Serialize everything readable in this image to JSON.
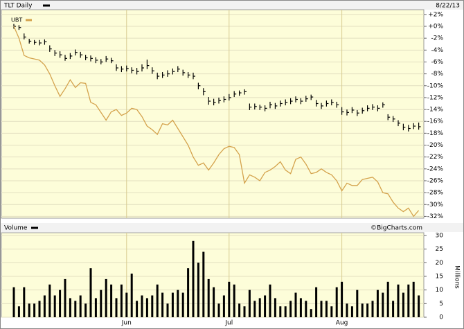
{
  "chart_data": [
    {
      "type": "ohlc",
      "date": "8/22/13",
      "categories": [
        null,
        null,
        null,
        null,
        null,
        null,
        null,
        null,
        null,
        null,
        null,
        null,
        null,
        null,
        null,
        null,
        null,
        null,
        null,
        null,
        null,
        null,
        "Jun",
        null,
        null,
        null,
        null,
        null,
        null,
        null,
        null,
        null,
        null,
        null,
        null,
        null,
        null,
        null,
        null,
        null,
        null,
        null,
        "Jul",
        null,
        null,
        null,
        null,
        null,
        null,
        null,
        null,
        null,
        null,
        null,
        null,
        null,
        null,
        null,
        null,
        null,
        null,
        null,
        null,
        null,
        "Aug",
        null,
        null,
        null,
        null,
        null,
        null,
        null,
        null,
        null,
        null,
        null,
        null,
        null,
        null,
        null
      ],
      "series": [
        {
          "name": "TLT Daily",
          "type": "ohlc",
          "color": "#000000",
          "values": [
            0,
            -0.2,
            -1.8,
            -2.5,
            -2.7,
            -2.8,
            -2.6,
            -3.8,
            -4.5,
            -4.8,
            -5.4,
            -5.0,
            -4.4,
            -4.8,
            -5.3,
            -5.4,
            -5.7,
            -6.0,
            -5.5,
            -5.8,
            -7.0,
            -7.2,
            -7.1,
            -7.4,
            -7.6,
            -7.0,
            -6.6,
            -7.5,
            -8.4,
            -8.2,
            -8.0,
            -7.6,
            -7.2,
            -7.8,
            -8.2,
            -8.4,
            -10.0,
            -11.0,
            -12.6,
            -12.8,
            -12.5,
            -12.3,
            -12.0,
            -11.4,
            -11.2,
            -11.0,
            -13.6,
            -13.5,
            -13.6,
            -13.8,
            -13.2,
            -13.4,
            -13.0,
            -12.8,
            -12.6,
            -12.3,
            -12.6,
            -12.2,
            -11.9,
            -13.0,
            -13.4,
            -13.0,
            -12.8,
            -13.2,
            -14.4,
            -14.5,
            -14.1,
            -14.6,
            -14.2,
            -13.8,
            -13.6,
            -13.8,
            -13.2,
            -15.3,
            -15.6,
            -16.3,
            -17.0,
            -17.2,
            -16.8,
            -16.9
          ],
          "high": [
            0.4,
            0.2,
            -1.2,
            -2.1,
            -2.3,
            -2.3,
            -2.2,
            -3.2,
            -4.0,
            -4.2,
            -4.8,
            -4.5,
            -3.9,
            -4.3,
            -4.8,
            -4.9,
            -5.2,
            -5.5,
            -5.0,
            -5.3,
            -6.4,
            -6.7,
            -6.6,
            -6.9,
            -7.0,
            -6.4,
            -5.6,
            -6.9,
            -7.8,
            -7.7,
            -7.4,
            -7.1,
            -6.7,
            -7.3,
            -7.7,
            -7.8,
            -9.5,
            -10.4,
            -11.9,
            -12.2,
            -12.0,
            -11.8,
            -11.4,
            -10.9,
            -10.8,
            -10.6,
            -13.0,
            -13.0,
            -13.2,
            -13.3,
            -12.7,
            -12.9,
            -12.5,
            -12.3,
            -12.1,
            -11.8,
            -12.1,
            -11.7,
            -11.5,
            -12.4,
            -12.9,
            -12.5,
            -12.3,
            -12.7,
            -13.6,
            -14.0,
            -13.6,
            -14.1,
            -13.7,
            -13.3,
            -13.1,
            -13.3,
            -12.8,
            -14.8,
            -15.1,
            -15.8,
            -16.4,
            -16.6,
            -16.3,
            -16.2
          ],
          "low": [
            -0.4,
            -0.6,
            -2.2,
            -2.9,
            -3.1,
            -3.2,
            -3.1,
            -4.3,
            -5.0,
            -5.3,
            -5.8,
            -5.5,
            -4.9,
            -5.3,
            -5.7,
            -5.9,
            -6.2,
            -6.4,
            -6.0,
            -6.2,
            -7.5,
            -7.7,
            -7.6,
            -7.9,
            -8.1,
            -7.6,
            -7.2,
            -8.0,
            -8.9,
            -8.7,
            -8.5,
            -8.1,
            -7.7,
            -8.3,
            -8.7,
            -8.9,
            -10.6,
            -11.6,
            -13.2,
            -13.3,
            -13.0,
            -12.8,
            -12.5,
            -11.9,
            -11.7,
            -11.5,
            -14.1,
            -14.0,
            -14.1,
            -14.3,
            -13.8,
            -13.9,
            -13.5,
            -13.3,
            -13.1,
            -12.8,
            -13.1,
            -12.7,
            -12.4,
            -13.5,
            -13.9,
            -13.5,
            -13.3,
            -13.7,
            -14.9,
            -15.0,
            -14.6,
            -15.1,
            -14.7,
            -14.3,
            -14.1,
            -14.3,
            -13.7,
            -15.8,
            -16.1,
            -16.8,
            -17.5,
            -17.7,
            -17.3,
            -17.4
          ]
        },
        {
          "name": "UBT",
          "type": "line",
          "color": "#d4a24c",
          "values": [
            0,
            -2.0,
            -4.9,
            -5.3,
            -5.5,
            -5.7,
            -6.5,
            -8.0,
            -10.0,
            -11.8,
            -10.5,
            -9.0,
            -10.3,
            -9.5,
            -9.6,
            -12.8,
            -13.2,
            -14.5,
            -15.8,
            -14.4,
            -14.0,
            -15.0,
            -14.6,
            -13.8,
            -14.0,
            -15.2,
            -16.8,
            -17.4,
            -18.2,
            -16.4,
            -16.6,
            -15.8,
            -17.2,
            -18.6,
            -20.0,
            -22.0,
            -23.4,
            -23.0,
            -24.2,
            -23.0,
            -21.6,
            -20.6,
            -20.2,
            -20.4,
            -21.6,
            -26.4,
            -25.0,
            -25.4,
            -26.0,
            -24.6,
            -24.2,
            -23.6,
            -22.8,
            -24.2,
            -24.8,
            -22.4,
            -22.0,
            -23.2,
            -24.8,
            -24.6,
            -24.0,
            -24.6,
            -25.0,
            -26.0,
            -27.7,
            -26.4,
            -26.8,
            -26.8,
            -25.8,
            -25.6,
            -25.4,
            -26.2,
            -28.0,
            -28.2,
            -29.6,
            -30.6,
            -31.2,
            -30.6,
            -32.0,
            -31.0
          ]
        }
      ],
      "ylim": [
        -32.3,
        2.8
      ],
      "yticks": [
        {
          "value": 2,
          "label": "+2%"
        },
        {
          "value": 0,
          "label": "+0%"
        },
        {
          "value": -2,
          "label": "-2%"
        },
        {
          "value": -4,
          "label": "-4%"
        },
        {
          "value": -6,
          "label": "-6%"
        },
        {
          "value": -8,
          "label": "-8%"
        },
        {
          "value": -10,
          "label": "-10%"
        },
        {
          "value": -12,
          "label": "-12%"
        },
        {
          "value": -14,
          "label": "-14%"
        },
        {
          "value": -16,
          "label": "-16%"
        },
        {
          "value": -18,
          "label": "-18%"
        },
        {
          "value": -20,
          "label": "-20%"
        },
        {
          "value": -22,
          "label": "-22%"
        },
        {
          "value": -24,
          "label": "-24%"
        },
        {
          "value": -26,
          "label": "-26%"
        },
        {
          "value": -28,
          "label": "-28%"
        },
        {
          "value": -30,
          "label": "-30%"
        },
        {
          "value": -32,
          "label": "-32%"
        }
      ],
      "grid": true
    },
    {
      "type": "bar",
      "title": "Volume",
      "credit": "©BigCharts.com",
      "y_label": "Millions",
      "color": "#000000",
      "values": [
        11,
        4,
        11,
        5,
        5,
        6,
        8,
        12,
        8,
        10,
        14,
        7,
        6,
        8,
        5,
        18,
        7,
        10,
        14,
        12,
        7,
        12,
        9,
        16,
        6,
        8,
        7,
        8,
        12,
        9,
        5,
        9,
        10,
        9,
        18,
        28,
        20,
        24,
        14,
        11,
        5,
        8,
        13,
        12,
        5,
        4,
        10,
        6,
        7,
        8,
        12,
        7,
        4,
        4,
        6,
        9,
        7,
        6,
        3,
        11,
        6,
        6,
        4,
        11,
        13,
        5,
        4,
        10,
        5,
        5,
        6,
        10,
        9,
        13,
        6,
        12,
        9,
        12,
        13,
        8
      ],
      "ylim": [
        0,
        31
      ],
      "yticks": [
        0,
        5,
        10,
        15,
        20,
        25,
        30
      ],
      "grid": true
    }
  ]
}
